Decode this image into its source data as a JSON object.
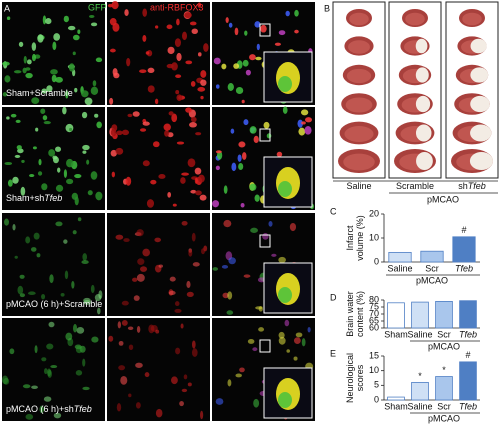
{
  "figure": {
    "panel_labels": [
      "A",
      "B",
      "C",
      "D",
      "E"
    ],
    "channels": [
      "GFP",
      "anti-RBFOX3"
    ],
    "rows": [
      {
        "text": "Sham+Scramble"
      },
      {
        "text": "Sham+sh",
        "italic": "Tfeb"
      },
      {
        "text": "pMCAO (6 h)+Scramble"
      },
      {
        "text": "pMCAO (6 h)+sh",
        "italic": "Tfeb"
      }
    ],
    "brain_groups": [
      {
        "text": "Saline"
      },
      {
        "text": "Scramble"
      },
      {
        "text": "sh",
        "italic": "Tfeb"
      }
    ],
    "brain_condition": "pMCAO"
  },
  "chart_data": [
    {
      "type": "bar",
      "ylabel": [
        "Infarct",
        "volume (%)"
      ],
      "categories": [
        "Saline",
        "Scr",
        "Tfeb"
      ],
      "italic": [
        false,
        false,
        true
      ],
      "values": [
        4,
        4.5,
        10.5
      ],
      "colors": [
        "#cfe0f5",
        "#a9c6ec",
        "#4f7fc4"
      ],
      "significance": [
        null,
        null,
        "#"
      ],
      "group_label": "pMCAO",
      "group_from": 0,
      "ylim": [
        0,
        20
      ],
      "yticks": [
        0,
        10,
        20
      ]
    },
    {
      "type": "bar",
      "ylabel": [
        "Brain water",
        "content (%)"
      ],
      "categories": [
        "Sham",
        "Saline",
        "Scr",
        "Tfeb"
      ],
      "italic": [
        false,
        false,
        false,
        true
      ],
      "values": [
        78,
        78.5,
        79,
        79.5
      ],
      "colors": [
        "#ffffff",
        "#cfe0f5",
        "#a9c6ec",
        "#4f7fc4"
      ],
      "significance": [
        null,
        null,
        null,
        null
      ],
      "group_label": "pMCAO",
      "group_from": 1,
      "ylim": [
        60,
        80
      ],
      "yticks": [
        60,
        65,
        70,
        75,
        80
      ]
    },
    {
      "type": "bar",
      "ylabel": [
        "Neurological",
        "scores"
      ],
      "categories": [
        "Sham",
        "Saline",
        "Scr",
        "Tfeb"
      ],
      "italic": [
        false,
        false,
        false,
        true
      ],
      "values": [
        1,
        6,
        8,
        13
      ],
      "colors": [
        "#ffffff",
        "#cfe0f5",
        "#a9c6ec",
        "#4f7fc4"
      ],
      "significance": [
        null,
        "*",
        "*",
        "#"
      ],
      "group_label": "pMCAO",
      "group_from": 1,
      "ylim": [
        0,
        15
      ],
      "yticks": [
        0,
        5,
        10,
        15
      ]
    }
  ]
}
